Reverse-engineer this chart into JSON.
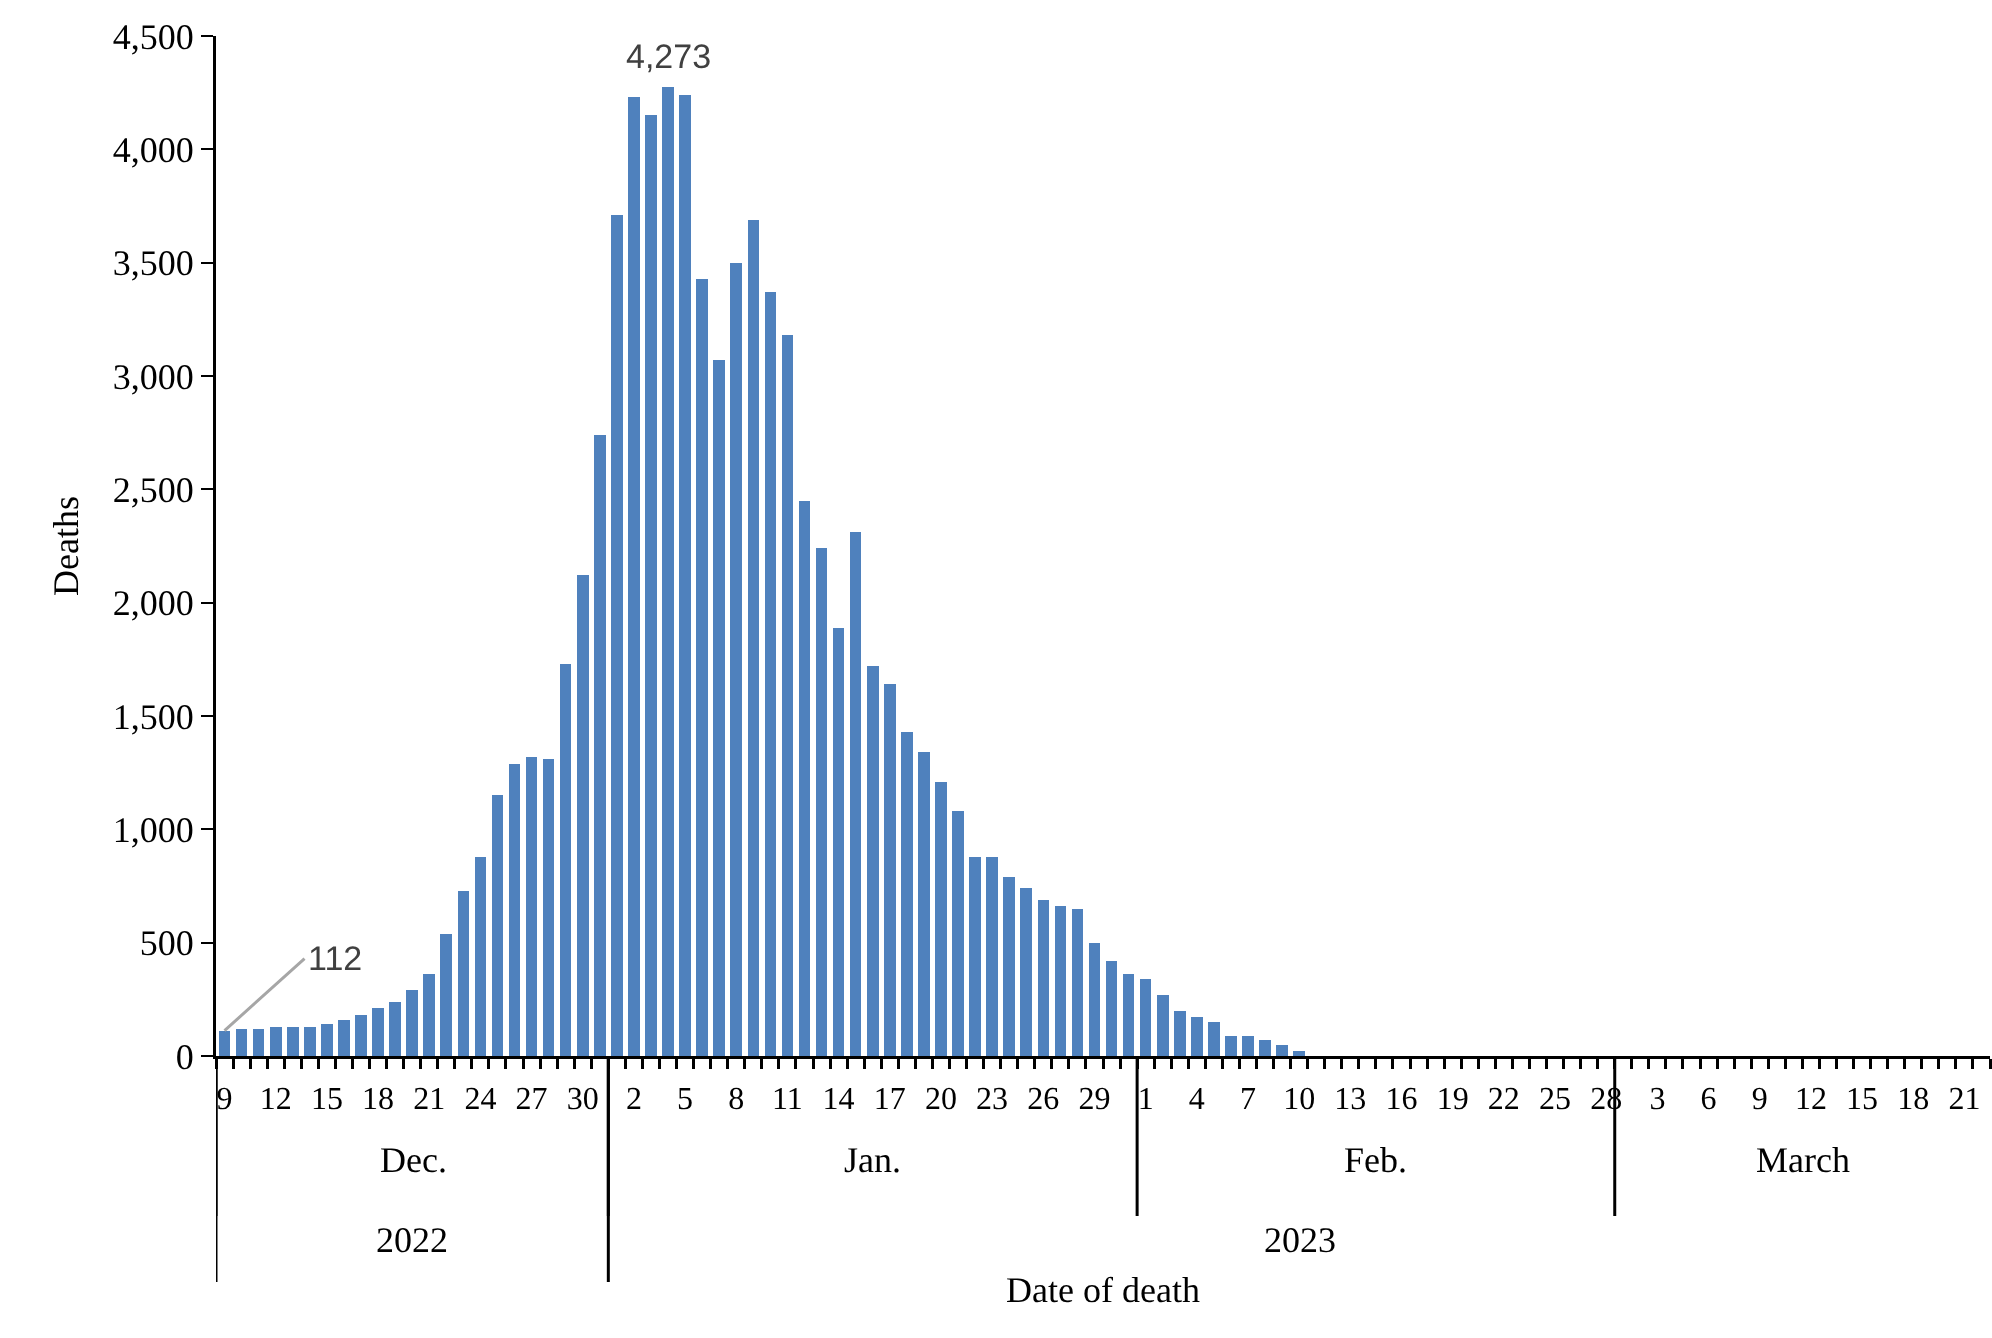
{
  "chart_data": {
    "type": "bar",
    "xlabel": "Date of death",
    "ylabel": "Deaths",
    "x": [
      "2022-12-09",
      "2022-12-10",
      "2022-12-11",
      "2022-12-12",
      "2022-12-13",
      "2022-12-14",
      "2022-12-15",
      "2022-12-16",
      "2022-12-17",
      "2022-12-18",
      "2022-12-19",
      "2022-12-20",
      "2022-12-21",
      "2022-12-22",
      "2022-12-23",
      "2022-12-24",
      "2022-12-25",
      "2022-12-26",
      "2022-12-27",
      "2022-12-28",
      "2022-12-29",
      "2022-12-30",
      "2022-12-31",
      "2023-01-01",
      "2023-01-02",
      "2023-01-03",
      "2023-01-04",
      "2023-01-05",
      "2023-01-06",
      "2023-01-07",
      "2023-01-08",
      "2023-01-09",
      "2023-01-10",
      "2023-01-11",
      "2023-01-12",
      "2023-01-13",
      "2023-01-14",
      "2023-01-15",
      "2023-01-16",
      "2023-01-17",
      "2023-01-18",
      "2023-01-19",
      "2023-01-20",
      "2023-01-21",
      "2023-01-22",
      "2023-01-23",
      "2023-01-24",
      "2023-01-25",
      "2023-01-26",
      "2023-01-27",
      "2023-01-28",
      "2023-01-29",
      "2023-01-30",
      "2023-01-31",
      "2023-02-01",
      "2023-02-02",
      "2023-02-03",
      "2023-02-04",
      "2023-02-05",
      "2023-02-06",
      "2023-02-07",
      "2023-02-08",
      "2023-02-09",
      "2023-02-10"
    ],
    "values": [
      112,
      120,
      120,
      130,
      130,
      130,
      140,
      160,
      180,
      210,
      240,
      290,
      360,
      540,
      730,
      880,
      1150,
      1290,
      1320,
      1310,
      1730,
      2120,
      2740,
      3710,
      4230,
      4150,
      4273,
      4240,
      3430,
      3070,
      3500,
      3690,
      3370,
      3180,
      2450,
      2240,
      1890,
      2310,
      1720,
      1640,
      1430,
      1340,
      1210,
      1080,
      880,
      880,
      790,
      740,
      690,
      660,
      650,
      500,
      420,
      360,
      340,
      270,
      200,
      170,
      150,
      90,
      90,
      70,
      50,
      20
    ],
    "value_labels": [
      "112",
      null,
      null,
      null,
      null,
      null,
      null,
      null,
      null,
      null,
      null,
      null,
      null,
      null,
      null,
      null,
      null,
      null,
      null,
      null,
      null,
      null,
      null,
      null,
      null,
      null,
      "4,273",
      null,
      null,
      null,
      null,
      null,
      null,
      null,
      null,
      null,
      null,
      null,
      null,
      null,
      null,
      null,
      null,
      null,
      null,
      null,
      null,
      null,
      null,
      null,
      null,
      null,
      null,
      null,
      null,
      null,
      null,
      null,
      null,
      null,
      null,
      null,
      null,
      null
    ],
    "color": "#4f81bd",
    "xlim": [
      "2022-12-08T12:00",
      "2023-03-22T12:00"
    ],
    "xticks": [
      {
        "value": "2022-12-09",
        "label": "9"
      },
      {
        "value": "2022-12-12",
        "label": "12"
      },
      {
        "value": "2022-12-15",
        "label": "15"
      },
      {
        "value": "2022-12-18",
        "label": "18"
      },
      {
        "value": "2022-12-21",
        "label": "21"
      },
      {
        "value": "2022-12-24",
        "label": "24"
      },
      {
        "value": "2022-12-27",
        "label": "27"
      },
      {
        "value": "2022-12-30",
        "label": "30"
      },
      {
        "value": "2023-01-02",
        "label": "2"
      },
      {
        "value": "2023-01-05",
        "label": "5"
      },
      {
        "value": "2023-01-08",
        "label": "8"
      },
      {
        "value": "2023-01-11",
        "label": "11"
      },
      {
        "value": "2023-01-14",
        "label": "14"
      },
      {
        "value": "2023-01-17",
        "label": "17"
      },
      {
        "value": "2023-01-20",
        "label": "20"
      },
      {
        "value": "2023-01-23",
        "label": "23"
      },
      {
        "value": "2023-01-26",
        "label": "26"
      },
      {
        "value": "2023-01-29",
        "label": "29"
      },
      {
        "value": "2023-02-01",
        "label": "1"
      },
      {
        "value": "2023-02-04",
        "label": "4"
      },
      {
        "value": "2023-02-07",
        "label": "7"
      },
      {
        "value": "2023-02-10",
        "label": "10"
      },
      {
        "value": "2023-02-13",
        "label": "13"
      },
      {
        "value": "2023-02-16",
        "label": "16"
      },
      {
        "value": "2023-02-19",
        "label": "19"
      },
      {
        "value": "2023-02-22",
        "label": "22"
      },
      {
        "value": "2023-02-25",
        "label": "25"
      },
      {
        "value": "2023-02-28",
        "label": "28"
      },
      {
        "value": "2023-03-03",
        "label": "3"
      },
      {
        "value": "2023-03-06",
        "label": "6"
      },
      {
        "value": "2023-03-09",
        "label": "9"
      },
      {
        "value": "2023-03-12",
        "label": "12"
      },
      {
        "value": "2023-03-15",
        "label": "15"
      },
      {
        "value": "2023-03-18",
        "label": "18"
      },
      {
        "value": "2023-03-21",
        "label": "21"
      }
    ],
    "ylim": [
      0,
      4500
    ],
    "yticks": [
      0,
      {
        "value": 500,
        "label": "500"
      },
      {
        "value": 1000,
        "label": "1,000"
      },
      {
        "value": 1500,
        "label": "1,500"
      },
      {
        "value": 2000,
        "label": "2,000"
      },
      {
        "value": 2500,
        "label": "2,500"
      },
      {
        "value": 3000,
        "label": "3,000"
      },
      {
        "value": 3500,
        "label": "3,500"
      },
      {
        "value": 4000,
        "label": "4,000"
      },
      {
        "value": 4500,
        "label": "4,500"
      }
    ],
    "annotations": [
      "Dec.",
      "Jan.",
      "Feb.",
      "March",
      "2022",
      "2023"
    ],
    "grid": false
  }
}
